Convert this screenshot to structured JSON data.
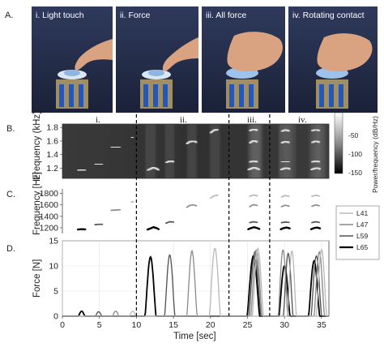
{
  "panel_letters": [
    "A.",
    "B.",
    "C.",
    "D."
  ],
  "photos": [
    {
      "label": "i. Light touch"
    },
    {
      "label": "ii. Force"
    },
    {
      "label": "iii. All force"
    },
    {
      "label": "iv. Rotating contact"
    }
  ],
  "section_labels": [
    "i.",
    "ii.",
    "iii.",
    "iv."
  ],
  "colors": {
    "L41": "#b8b8b8",
    "L47": "#8a8a8a",
    "L59": "#505050",
    "L65": "#000000"
  },
  "chart_data": [
    {
      "type": "heatmap",
      "panel": "B",
      "ylabel": "Frequency (kHz)",
      "yticks": [
        "1.2",
        "1.4",
        "1.6",
        "1.8"
      ],
      "ylim": [
        1.05,
        1.85
      ],
      "colorbar": {
        "label": "Power/frequency (dB/Hz)",
        "ticks": [
          "-50",
          "-100",
          "-150"
        ],
        "range": [
          -150,
          -30
        ]
      }
    },
    {
      "type": "scatter",
      "panel": "C",
      "ylabel": "Frequency [Hz]",
      "yticks": [
        "1200",
        "1400",
        "1600",
        "1800"
      ],
      "ylim": [
        1100,
        1880
      ],
      "xlim": [
        0,
        36
      ],
      "series": [
        {
          "name": "L41",
          "points": [
            [
              9.3,
              1650
            ],
            [
              9.6,
              1655
            ],
            [
              20.0,
              1720
            ],
            [
              20.5,
              1760
            ],
            [
              21.0,
              1770
            ],
            [
              25.3,
              1750
            ],
            [
              25.8,
              1775
            ],
            [
              26.3,
              1760
            ],
            [
              29.6,
              1740
            ],
            [
              30.1,
              1765
            ],
            [
              30.6,
              1750
            ],
            [
              33.7,
              1750
            ],
            [
              34.2,
              1770
            ],
            [
              34.7,
              1755
            ]
          ]
        },
        {
          "name": "L47",
          "points": [
            [
              6.6,
              1505
            ],
            [
              7.2,
              1510
            ],
            [
              7.8,
              1515
            ],
            [
              16.8,
              1560
            ],
            [
              17.2,
              1590
            ],
            [
              17.7,
              1600
            ],
            [
              18.1,
              1585
            ],
            [
              25.3,
              1570
            ],
            [
              25.8,
              1605
            ],
            [
              26.3,
              1590
            ],
            [
              29.6,
              1570
            ],
            [
              30.1,
              1595
            ],
            [
              30.6,
              1580
            ],
            [
              33.7,
              1575
            ],
            [
              34.2,
              1600
            ],
            [
              34.7,
              1585
            ]
          ]
        },
        {
          "name": "L59",
          "points": [
            [
              4.4,
              1255
            ],
            [
              4.9,
              1260
            ],
            [
              5.4,
              1260
            ],
            [
              14.0,
              1280
            ],
            [
              14.5,
              1305
            ],
            [
              15.0,
              1300
            ],
            [
              25.3,
              1290
            ],
            [
              25.8,
              1305
            ],
            [
              26.3,
              1295
            ],
            [
              29.6,
              1290
            ],
            [
              30.1,
              1300
            ],
            [
              30.6,
              1295
            ],
            [
              33.7,
              1290
            ],
            [
              34.2,
              1305
            ],
            [
              34.7,
              1295
            ]
          ]
        },
        {
          "name": "L65",
          "points": [
            [
              2.1,
              1170
            ],
            [
              2.6,
              1175
            ],
            [
              3.1,
              1172
            ],
            [
              11.5,
              1170
            ],
            [
              11.9,
              1190
            ],
            [
              12.3,
              1210
            ],
            [
              12.7,
              1195
            ],
            [
              13.0,
              1175
            ],
            [
              25.1,
              1175
            ],
            [
              25.5,
              1195
            ],
            [
              25.9,
              1210
            ],
            [
              26.3,
              1195
            ],
            [
              26.6,
              1180
            ],
            [
              29.5,
              1175
            ],
            [
              29.9,
              1195
            ],
            [
              30.3,
              1205
            ],
            [
              30.7,
              1190
            ],
            [
              33.6,
              1175
            ],
            [
              34.0,
              1195
            ],
            [
              34.4,
              1205
            ],
            [
              34.8,
              1190
            ]
          ]
        }
      ],
      "legend": [
        "L41",
        "L47",
        "L59",
        "L65"
      ]
    },
    {
      "type": "line",
      "panel": "D",
      "ylabel": "Force [N]",
      "xlabel": "Time [sec]",
      "yticks": [
        "0",
        "5",
        "10",
        "15"
      ],
      "xticks": [
        "0",
        "5",
        "10",
        "15",
        "20",
        "25",
        "30",
        "35"
      ],
      "ylim": [
        0,
        15
      ],
      "xlim": [
        0,
        36
      ],
      "series": [
        {
          "name": "L65",
          "pulses": [
            [
              2.6,
              1.0,
              0.9
            ],
            [
              11.9,
              11.8,
              1.5
            ],
            [
              25.8,
              12.0,
              1.7
            ],
            [
              30.0,
              10.0,
              1.5
            ],
            [
              34.0,
              11.0,
              1.5
            ]
          ]
        },
        {
          "name": "L59",
          "pulses": [
            [
              4.9,
              0.9,
              0.9
            ],
            [
              14.5,
              12.2,
              1.4
            ],
            [
              26.0,
              12.8,
              1.6
            ],
            [
              30.5,
              12.5,
              1.3
            ],
            [
              34.3,
              12.0,
              1.4
            ]
          ]
        },
        {
          "name": "L47",
          "pulses": [
            [
              7.2,
              1.0,
              0.9
            ],
            [
              17.5,
              13.0,
              1.4
            ],
            [
              26.2,
              13.2,
              1.5
            ],
            [
              29.8,
              13.2,
              1.3
            ],
            [
              34.7,
              12.8,
              1.4
            ]
          ]
        },
        {
          "name": "L41",
          "pulses": [
            [
              9.5,
              1.0,
              0.9
            ],
            [
              20.6,
              13.5,
              1.5
            ],
            [
              26.4,
              13.5,
              1.5
            ],
            [
              31.0,
              13.0,
              1.2
            ],
            [
              35.0,
              13.3,
              1.4
            ]
          ]
        }
      ],
      "section_boundaries": [
        10.0,
        22.5,
        28.0
      ]
    }
  ]
}
